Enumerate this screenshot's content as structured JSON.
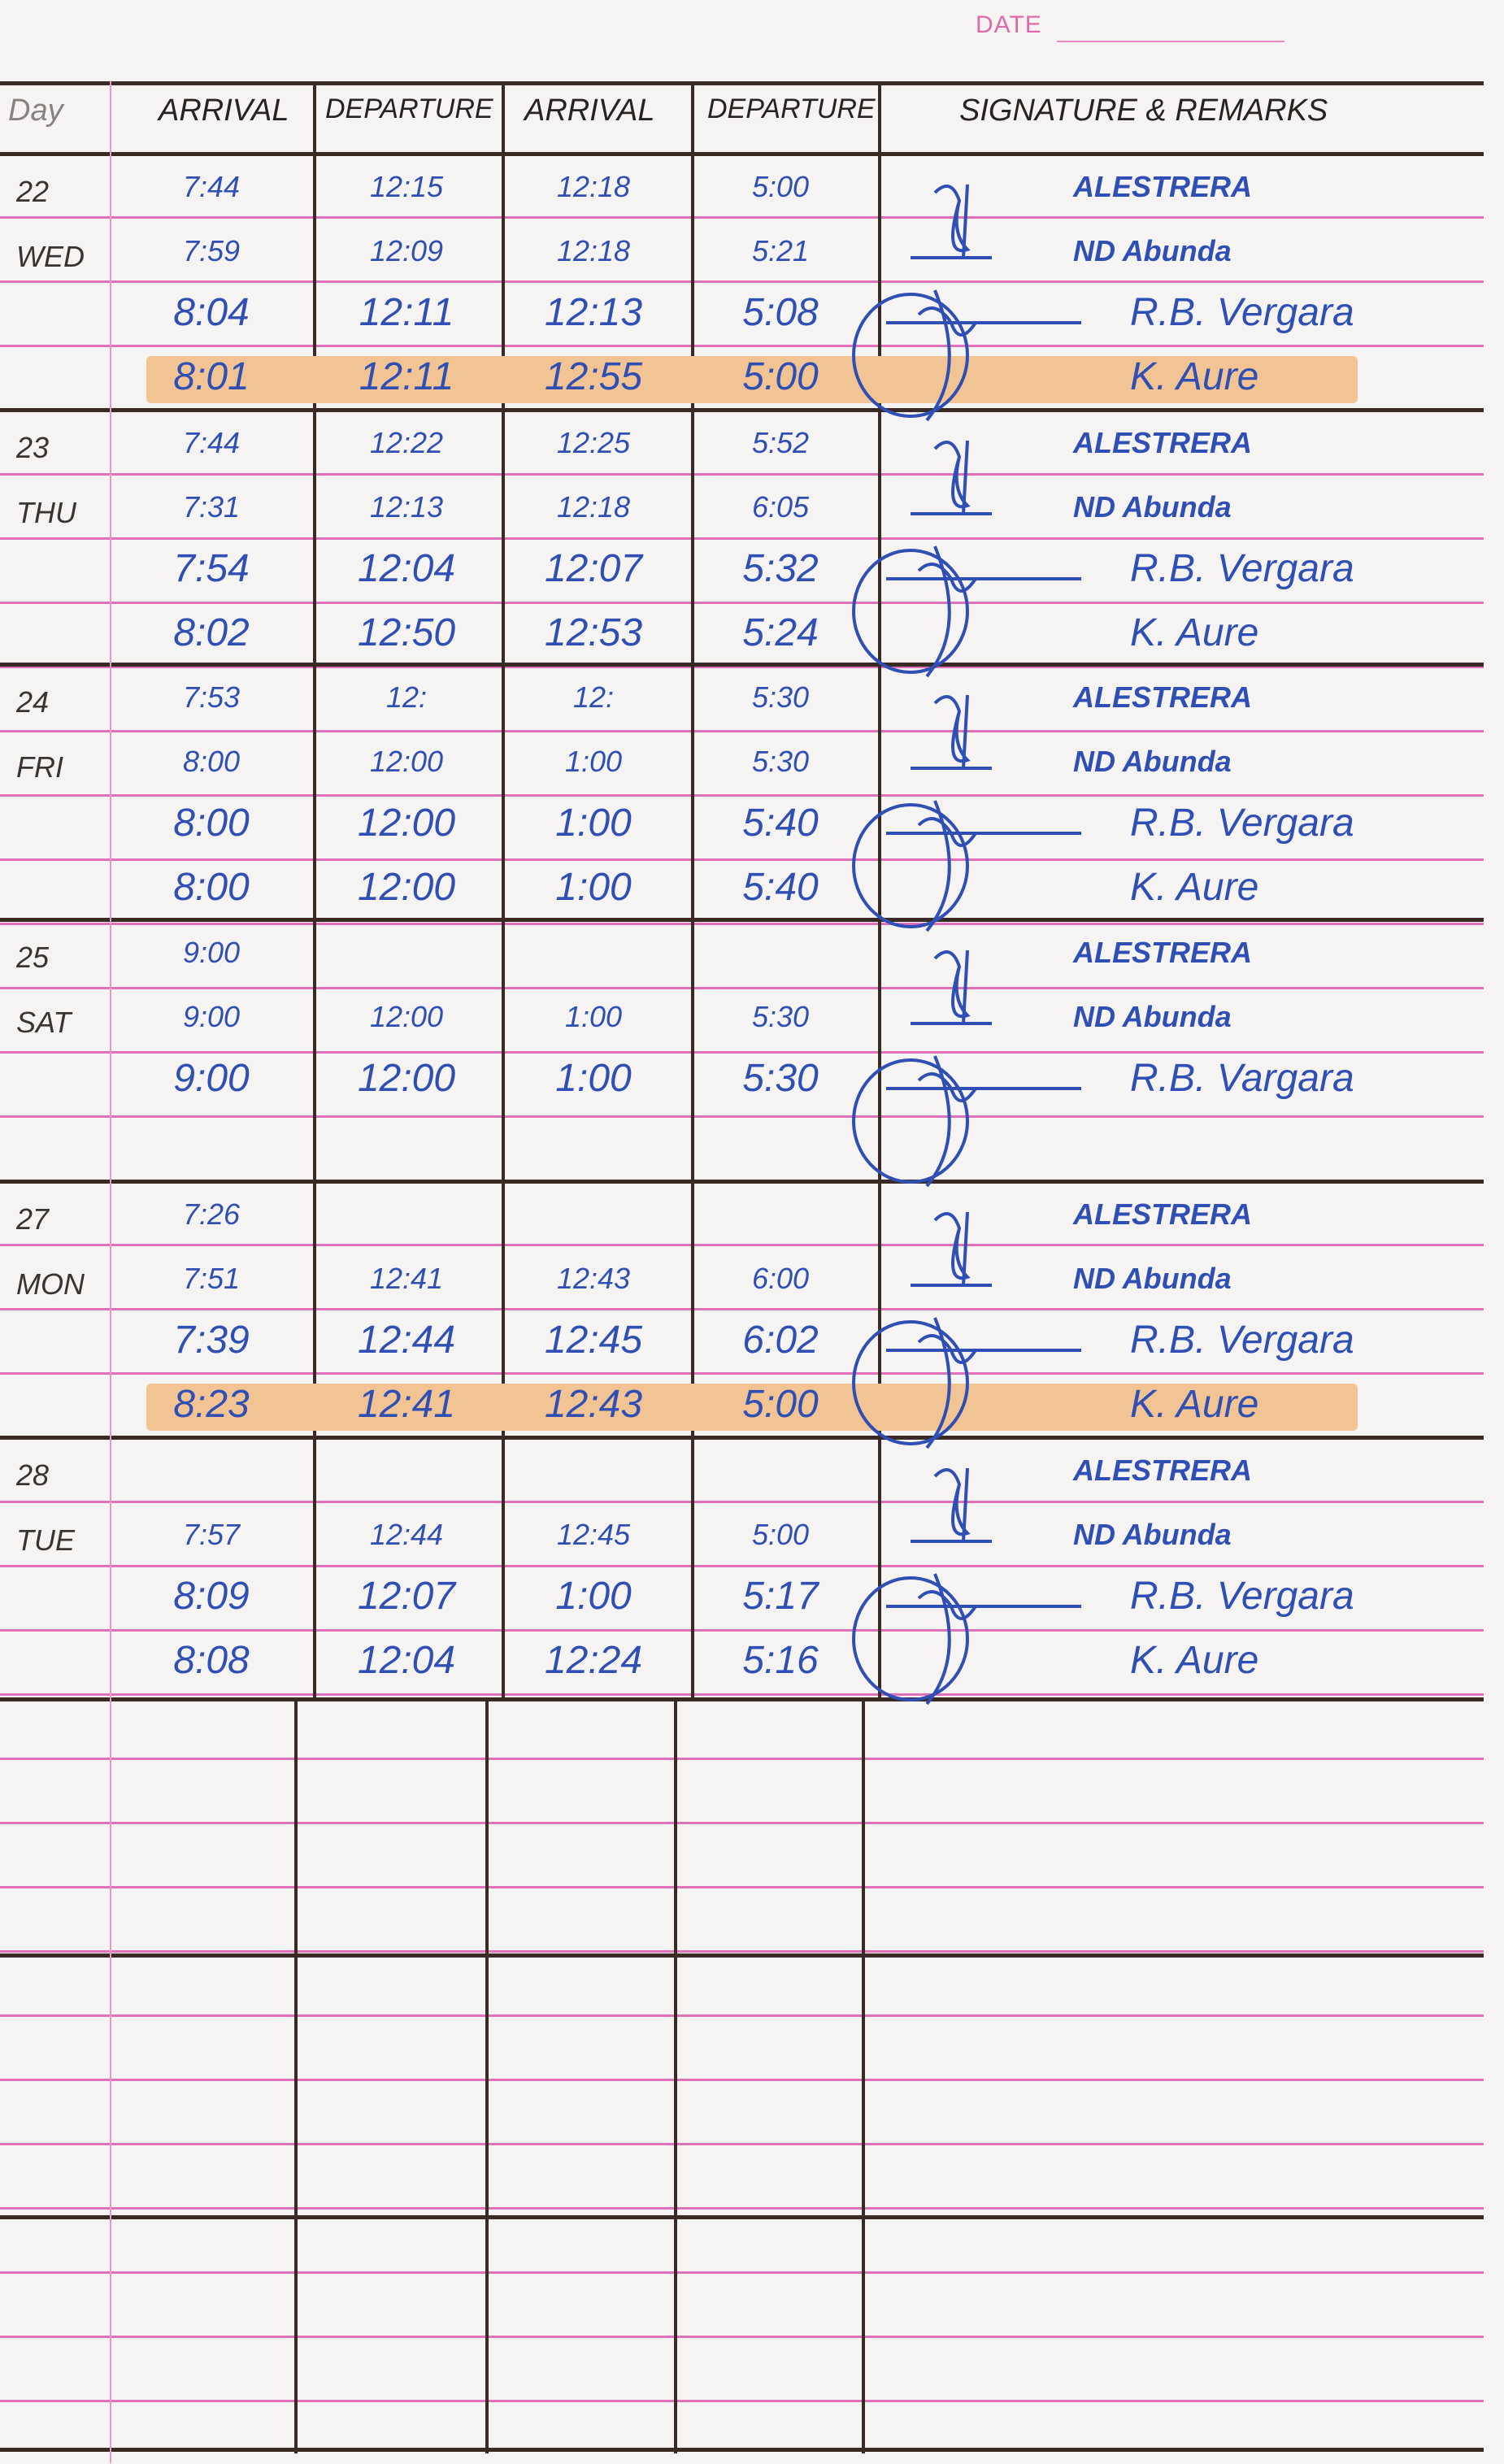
{
  "header": {
    "date_label": "DATE",
    "columns": [
      "Day",
      "ARRIVAL",
      "DEPARTURE",
      "ARRIVAL",
      "DEPARTURE",
      "SIGNATURE & REMARKS"
    ]
  },
  "ink_color": "#2f4fb4",
  "highlight_color": "#f2c493",
  "days": [
    {
      "date": "22",
      "weekday": "WED",
      "rows": [
        {
          "times": [
            "7:44",
            "12:15",
            "12:18",
            "5:00"
          ],
          "name": "ALESTRERA",
          "highlight": false
        },
        {
          "times": [
            "7:59",
            "12:09",
            "12:18",
            "5:21"
          ],
          "name": "ND Abunda",
          "highlight": false
        },
        {
          "times": [
            "8:04",
            "12:11",
            "12:13",
            "5:08"
          ],
          "name": "R.B. Vergara",
          "highlight": false
        },
        {
          "times": [
            "8:01",
            "12:11",
            "12:55",
            "5:00"
          ],
          "name": "K. Aure",
          "highlight": true
        }
      ]
    },
    {
      "date": "23",
      "weekday": "THU",
      "rows": [
        {
          "times": [
            "7:44",
            "12:22",
            "12:25",
            "5:52"
          ],
          "name": "ALESTRERA",
          "highlight": false
        },
        {
          "times": [
            "7:31",
            "12:13",
            "12:18",
            "6:05"
          ],
          "name": "ND Abunda",
          "highlight": false
        },
        {
          "times": [
            "7:54",
            "12:04",
            "12:07",
            "5:32"
          ],
          "name": "R.B. Vergara",
          "highlight": false
        },
        {
          "times": [
            "8:02",
            "12:50",
            "12:53",
            "5:24"
          ],
          "name": "K. Aure",
          "highlight": false
        }
      ]
    },
    {
      "date": "24",
      "weekday": "FRI",
      "rows": [
        {
          "times": [
            "7:53",
            "12:",
            "12:",
            "5:30"
          ],
          "name": "ALESTRERA",
          "highlight": false
        },
        {
          "times": [
            "8:00",
            "12:00",
            "1:00",
            "5:30"
          ],
          "name": "ND Abunda",
          "highlight": false
        },
        {
          "times": [
            "8:00",
            "12:00",
            "1:00",
            "5:40"
          ],
          "name": "R.B. Vergara",
          "highlight": false
        },
        {
          "times": [
            "8:00",
            "12:00",
            "1:00",
            "5:40"
          ],
          "name": "K. Aure",
          "highlight": false
        }
      ]
    },
    {
      "date": "25",
      "weekday": "SAT",
      "rows": [
        {
          "times": [
            "9:00",
            "",
            "",
            ""
          ],
          "name": "ALESTRERA",
          "highlight": false
        },
        {
          "times": [
            "9:00",
            "12:00",
            "1:00",
            "5:30"
          ],
          "name": "ND Abunda",
          "highlight": false
        },
        {
          "times": [
            "9:00",
            "12:00",
            "1:00",
            "5:30"
          ],
          "name": "R.B. Vargara",
          "highlight": false
        },
        {
          "times": [
            "",
            "",
            "",
            ""
          ],
          "name": "",
          "highlight": false
        }
      ]
    },
    {
      "date": "27",
      "weekday": "MON",
      "rows": [
        {
          "times": [
            "7:26",
            "",
            "",
            ""
          ],
          "name": "ALESTRERA",
          "highlight": false
        },
        {
          "times": [
            "7:51",
            "12:41",
            "12:43",
            "6:00"
          ],
          "name": "ND Abunda",
          "highlight": false
        },
        {
          "times": [
            "7:39",
            "12:44",
            "12:45",
            "6:02"
          ],
          "name": "R.B. Vergara",
          "highlight": false
        },
        {
          "times": [
            "8:23",
            "12:41",
            "12:43",
            "5:00"
          ],
          "name": "K. Aure",
          "highlight": true
        }
      ]
    },
    {
      "date": "28",
      "weekday": "TUE",
      "rows": [
        {
          "times": [
            "",
            "",
            "",
            ""
          ],
          "name": "ALESTRERA",
          "highlight": false
        },
        {
          "times": [
            "7:57",
            "12:44",
            "12:45",
            "5:00"
          ],
          "name": "ND Abunda",
          "highlight": false
        },
        {
          "times": [
            "8:09",
            "12:07",
            "1:00",
            "5:17"
          ],
          "name": "R.B. Vergara",
          "highlight": false
        },
        {
          "times": [
            "8:08",
            "12:04",
            "12:24",
            "5:16"
          ],
          "name": "K. Aure",
          "highlight": false
        }
      ]
    }
  ]
}
